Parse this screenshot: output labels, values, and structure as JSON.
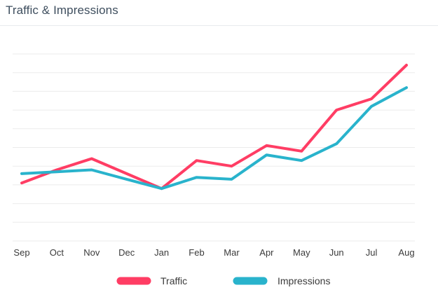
{
  "widget": {
    "title": "Traffic & Impressions"
  },
  "chart_data": {
    "type": "line",
    "title": "Traffic & Impressions",
    "xlabel": "",
    "ylabel": "",
    "categories": [
      "Sep",
      "Oct",
      "Nov",
      "Dec",
      "Jan",
      "Feb",
      "Mar",
      "Apr",
      "May",
      "Jun",
      "Jul",
      "Aug"
    ],
    "ylim": [
      0,
      10
    ],
    "grid": true,
    "legend_position": "bottom",
    "series": [
      {
        "name": "Traffic",
        "color": "#ff3d64",
        "values": [
          3.1,
          3.8,
          4.4,
          3.6,
          2.8,
          4.3,
          4.0,
          5.1,
          4.8,
          7.0,
          7.6,
          9.4
        ]
      },
      {
        "name": "Impressions",
        "color": "#29b3cc",
        "values": [
          3.6,
          3.7,
          3.8,
          3.3,
          2.8,
          3.4,
          3.3,
          4.6,
          4.3,
          5.2,
          7.2,
          8.2
        ]
      }
    ]
  }
}
